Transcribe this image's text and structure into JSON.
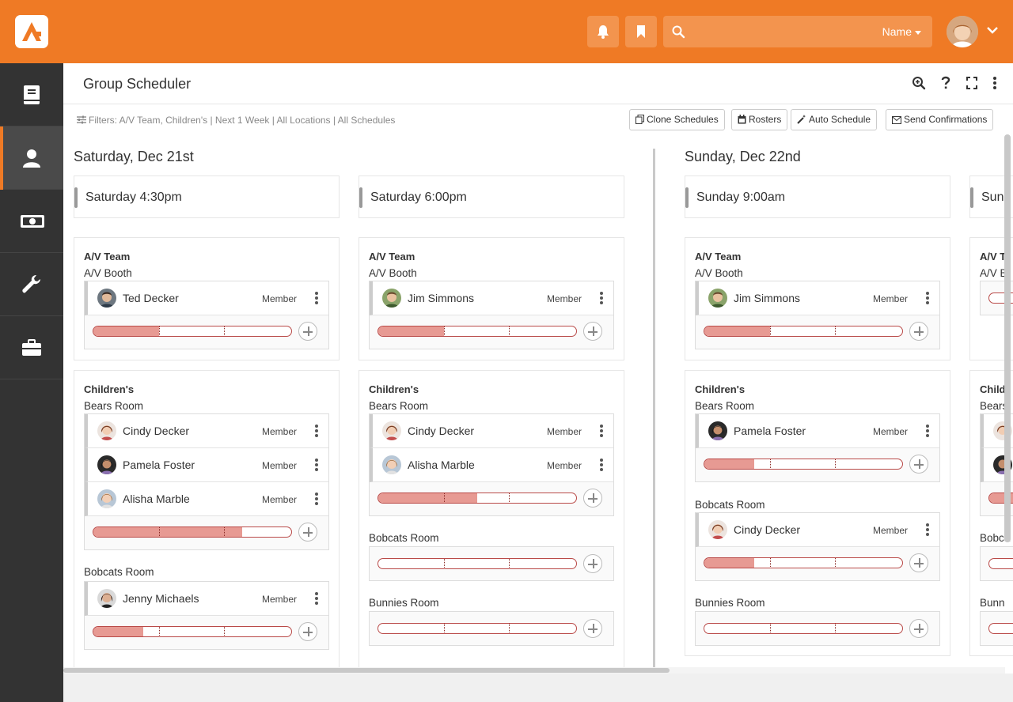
{
  "header": {
    "notifications_icon": "bell-icon",
    "bookmarks_icon": "bookmark-icon",
    "search": {
      "placeholder": "",
      "scope": "Name"
    }
  },
  "sidebar": {
    "items": [
      {
        "name": "book",
        "icon": "book-icon"
      },
      {
        "name": "people",
        "icon": "person-icon",
        "active": true
      },
      {
        "name": "finance",
        "icon": "money-icon"
      },
      {
        "name": "admin-tools",
        "icon": "wrench-icon"
      },
      {
        "name": "cms",
        "icon": "briefcase-icon"
      }
    ]
  },
  "page": {
    "title": "Group Scheduler",
    "filters": "Filters: A/V Team, Children's | Next 1 Week | All Locations | All Schedules",
    "actions": {
      "clone": "Clone Schedules",
      "rosters": "Rosters",
      "auto": "Auto Schedule",
      "send": "Send Confirmations"
    }
  },
  "days": [
    {
      "title": "Saturday, Dec 21st",
      "schedules": [
        {
          "name": "Saturday 4:30pm",
          "groups": [
            {
              "name": "A/V Team",
              "locations": [
                {
                  "name": "A/V Booth",
                  "people": [
                    {
                      "name": "Ted Decker",
                      "role": "Member"
                    }
                  ],
                  "fill": 0.33
                }
              ]
            },
            {
              "name": "Children's",
              "locations": [
                {
                  "name": "Bears Room",
                  "people": [
                    {
                      "name": "Cindy Decker",
                      "role": "Member"
                    },
                    {
                      "name": "Pamela Foster",
                      "role": "Member"
                    },
                    {
                      "name": "Alisha Marble",
                      "role": "Member"
                    }
                  ],
                  "fill": 0.75
                },
                {
                  "name": "Bobcats Room",
                  "people": [
                    {
                      "name": "Jenny Michaels",
                      "role": "Member"
                    }
                  ],
                  "fill": 0.25
                }
              ]
            }
          ]
        },
        {
          "name": "Saturday 6:00pm",
          "groups": [
            {
              "name": "A/V Team",
              "locations": [
                {
                  "name": "A/V Booth",
                  "people": [
                    {
                      "name": "Jim Simmons",
                      "role": "Member"
                    }
                  ],
                  "fill": 0.33
                }
              ]
            },
            {
              "name": "Children's",
              "locations": [
                {
                  "name": "Bears Room",
                  "people": [
                    {
                      "name": "Cindy Decker",
                      "role": "Member"
                    },
                    {
                      "name": "Alisha Marble",
                      "role": "Member"
                    }
                  ],
                  "fill": 0.5
                },
                {
                  "name": "Bobcats Room",
                  "people": [],
                  "fill": 0
                },
                {
                  "name": "Bunnies Room",
                  "people": [],
                  "fill": 0
                }
              ]
            }
          ]
        }
      ]
    },
    {
      "title": "Sunday, Dec 22nd",
      "schedules": [
        {
          "name": "Sunday 9:00am",
          "groups": [
            {
              "name": "A/V Team",
              "locations": [
                {
                  "name": "A/V Booth",
                  "people": [
                    {
                      "name": "Jim Simmons",
                      "role": "Member"
                    }
                  ],
                  "fill": 0.33
                }
              ]
            },
            {
              "name": "Children's",
              "locations": [
                {
                  "name": "Bears Room",
                  "people": [
                    {
                      "name": "Pamela Foster",
                      "role": "Member"
                    }
                  ],
                  "fill": 0.25
                },
                {
                  "name": "Bobcats Room",
                  "people": [
                    {
                      "name": "Cindy Decker",
                      "role": "Member"
                    }
                  ],
                  "fill": 0.25
                },
                {
                  "name": "Bunnies Room",
                  "people": [],
                  "fill": 0
                }
              ]
            }
          ]
        },
        {
          "name": "Sund",
          "groups": [
            {
              "name": "A/V T",
              "location": "A/V B"
            },
            {
              "name": "Child",
              "location": "Bears",
              "location2": "Bobca",
              "location3": "Bunn"
            }
          ]
        }
      ]
    }
  ]
}
